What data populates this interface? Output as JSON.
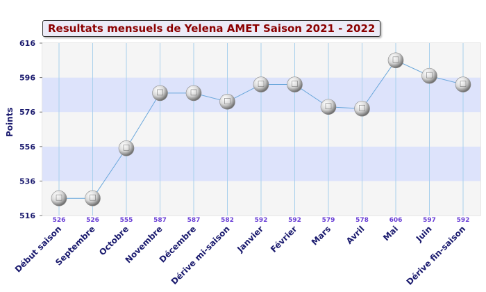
{
  "chart_data": {
    "type": "line",
    "title": "Resultats mensuels de Yelena AMET Saison 2021 - 2022",
    "ylabel": "Points",
    "xlabel": "",
    "ylim": [
      516,
      616
    ],
    "yticks": [
      516,
      536,
      556,
      576,
      596,
      616
    ],
    "categories": [
      "Début saison",
      "Septembre",
      "Octobre",
      "Novembre",
      "Décembre",
      "Dérive mi-saison",
      "Janvier",
      "Février",
      "Mars",
      "Avril",
      "Mai",
      "Juin",
      "Dérive fin-saison"
    ],
    "series": [
      {
        "values": [
          526,
          526,
          555,
          587,
          587,
          582,
          592,
          592,
          579,
          578,
          606,
          597,
          592
        ]
      }
    ],
    "data_labels": [
      "526",
      "526",
      "555",
      "587",
      "587",
      "582",
      "592",
      "592",
      "579",
      "578",
      "606",
      "597",
      "592"
    ],
    "grid": true,
    "colors": {
      "band": "#dde3fb",
      "band_alt": "#f5f5f5",
      "line": "#6aa7db",
      "vgrid": "#a8d0ec",
      "axis_text": "#1a1a6e",
      "label_text": "#6a3fd6",
      "title_text": "#8b0000"
    }
  }
}
